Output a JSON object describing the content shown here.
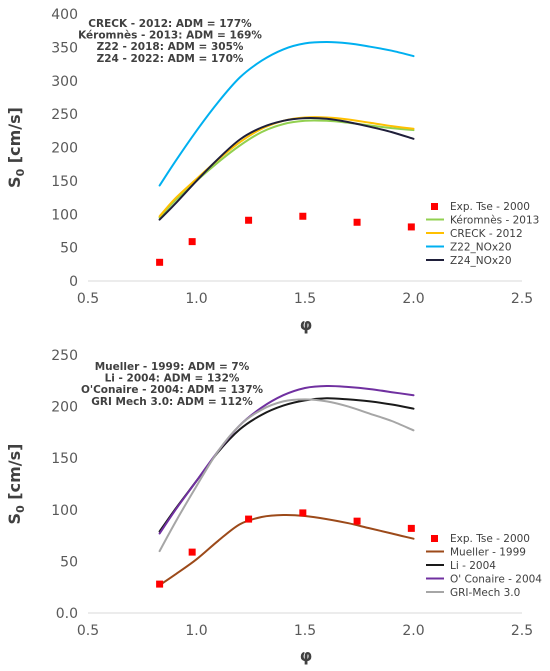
{
  "chart_data": [
    {
      "type": "line",
      "title": "",
      "xlabel": "φ",
      "ylabel": "S0 [cm/s]",
      "ylabel_main": "S",
      "ylabel_sub": "0",
      "ylabel_rest": " [cm/s]",
      "xlim": [
        0.5,
        2.5
      ],
      "ylim": [
        0,
        400
      ],
      "xticks": [
        0.5,
        1.0,
        1.5,
        2.0,
        2.5
      ],
      "yticks": [
        0,
        50,
        100,
        150,
        200,
        250,
        300,
        350,
        400
      ],
      "xtick_labels": [
        "0.5",
        "1.0",
        "1.5",
        "2.0",
        "2.5"
      ],
      "ytick_labels": [
        "0",
        "50",
        "100",
        "150",
        "200",
        "250",
        "300",
        "350",
        "400"
      ],
      "annotations": [
        "CRECK - 2012: ADM = 177%",
        "Kéromnès - 2013: ADM = 169%",
        "Z22 - 2018: ADM = 305%",
        "Z24 - 2022: ADM = 170%"
      ],
      "legend_position": "bottom-right",
      "experiment": {
        "name": "Exp. Tse - 2000",
        "color": "#ff0000",
        "x": [
          0.83,
          0.98,
          1.24,
          1.49,
          1.74,
          1.99
        ],
        "y": [
          28,
          59,
          91,
          97,
          88,
          81
        ]
      },
      "series": [
        {
          "name": "Kéromnès - 2013",
          "color": "#92d050",
          "x": [
            0.83,
            0.9,
            1.0,
            1.1,
            1.2,
            1.3,
            1.4,
            1.5,
            1.6,
            1.7,
            1.8,
            1.9,
            2.0
          ],
          "y": [
            95,
            120,
            150,
            178,
            203,
            223,
            235,
            240,
            240,
            237,
            233,
            229,
            226
          ]
        },
        {
          "name": "CRECK - 2012",
          "color": "#ffc000",
          "x": [
            0.83,
            0.9,
            1.0,
            1.1,
            1.2,
            1.3,
            1.4,
            1.5,
            1.6,
            1.7,
            1.8,
            1.9,
            2.0
          ],
          "y": [
            97,
            123,
            153,
            182,
            208,
            228,
            240,
            245,
            245,
            242,
            237,
            232,
            228
          ]
        },
        {
          "name": "Z22_NOx20",
          "color": "#00b0f0",
          "x": [
            0.83,
            0.9,
            1.0,
            1.1,
            1.2,
            1.3,
            1.4,
            1.5,
            1.6,
            1.7,
            1.8,
            1.9,
            2.0
          ],
          "y": [
            143,
            178,
            225,
            268,
            305,
            330,
            347,
            356,
            358,
            356,
            351,
            345,
            337
          ]
        },
        {
          "name": "Z24_NOx20",
          "color": "#1f1f3a",
          "x": [
            0.83,
            0.9,
            1.0,
            1.1,
            1.2,
            1.3,
            1.4,
            1.5,
            1.6,
            1.7,
            1.8,
            1.9,
            2.0
          ],
          "y": [
            92,
            115,
            150,
            183,
            212,
            230,
            240,
            244,
            243,
            238,
            231,
            223,
            213
          ]
        }
      ]
    },
    {
      "type": "line",
      "title": "",
      "xlabel": "φ",
      "ylabel": "S0 [cm/s]",
      "ylabel_main": "S",
      "ylabel_sub": "0",
      "ylabel_rest": " [cm/s]",
      "xlim": [
        0.5,
        2.5
      ],
      "ylim": [
        0,
        250
      ],
      "xticks": [
        0.5,
        1.0,
        1.5,
        2.0,
        2.5
      ],
      "yticks": [
        0,
        50,
        100,
        150,
        200,
        250
      ],
      "xtick_labels": [
        "0.5",
        "1.0",
        "1.5",
        "2.0",
        "2.5"
      ],
      "ytick_labels": [
        "0.0",
        "50",
        "100",
        "150",
        "200",
        "250"
      ],
      "annotations": [
        "Mueller - 1999: ADM = 7%",
        "Li - 2004: ADM = 132%",
        "O'Conaire - 2004: ADM = 137%",
        "GRI Mech 3.0: ADM = 112%"
      ],
      "legend_position": "bottom-right",
      "experiment": {
        "name": "Exp. Tse - 2000",
        "color": "#ff0000",
        "x": [
          0.83,
          0.98,
          1.24,
          1.49,
          1.74,
          1.99
        ],
        "y": [
          28,
          59,
          91,
          97,
          89,
          82
        ]
      },
      "series": [
        {
          "name": "Mueller - 1999",
          "color": "#9c4a1a",
          "x": [
            0.83,
            0.9,
            1.0,
            1.1,
            1.2,
            1.3,
            1.4,
            1.5,
            1.6,
            1.7,
            1.8,
            1.9,
            2.0
          ],
          "y": [
            27,
            37,
            52,
            70,
            86,
            93,
            95,
            94,
            91,
            87,
            82,
            77,
            72
          ]
        },
        {
          "name": "Li - 2004",
          "color": "#1a1a1a",
          "x": [
            0.83,
            0.9,
            1.0,
            1.1,
            1.2,
            1.3,
            1.4,
            1.5,
            1.6,
            1.7,
            1.8,
            1.9,
            2.0
          ],
          "y": [
            79,
            100,
            128,
            156,
            178,
            192,
            201,
            206,
            208,
            207,
            205,
            202,
            198
          ]
        },
        {
          "name": "O' Conaire - 2004",
          "color": "#7030a0",
          "x": [
            0.83,
            0.9,
            1.0,
            1.1,
            1.2,
            1.3,
            1.4,
            1.5,
            1.6,
            1.7,
            1.8,
            1.9,
            2.0
          ],
          "y": [
            77,
            99,
            128,
            157,
            182,
            199,
            211,
            218,
            220,
            219,
            217,
            214,
            211
          ]
        },
        {
          "name": "GRI-Mech 3.0",
          "color": "#a6a6a6",
          "x": [
            0.83,
            0.9,
            1.0,
            1.1,
            1.2,
            1.3,
            1.4,
            1.5,
            1.6,
            1.7,
            1.8,
            1.9,
            2.0
          ],
          "y": [
            60,
            87,
            123,
            157,
            182,
            197,
            205,
            207,
            205,
            200,
            193,
            186,
            177
          ]
        }
      ]
    }
  ]
}
